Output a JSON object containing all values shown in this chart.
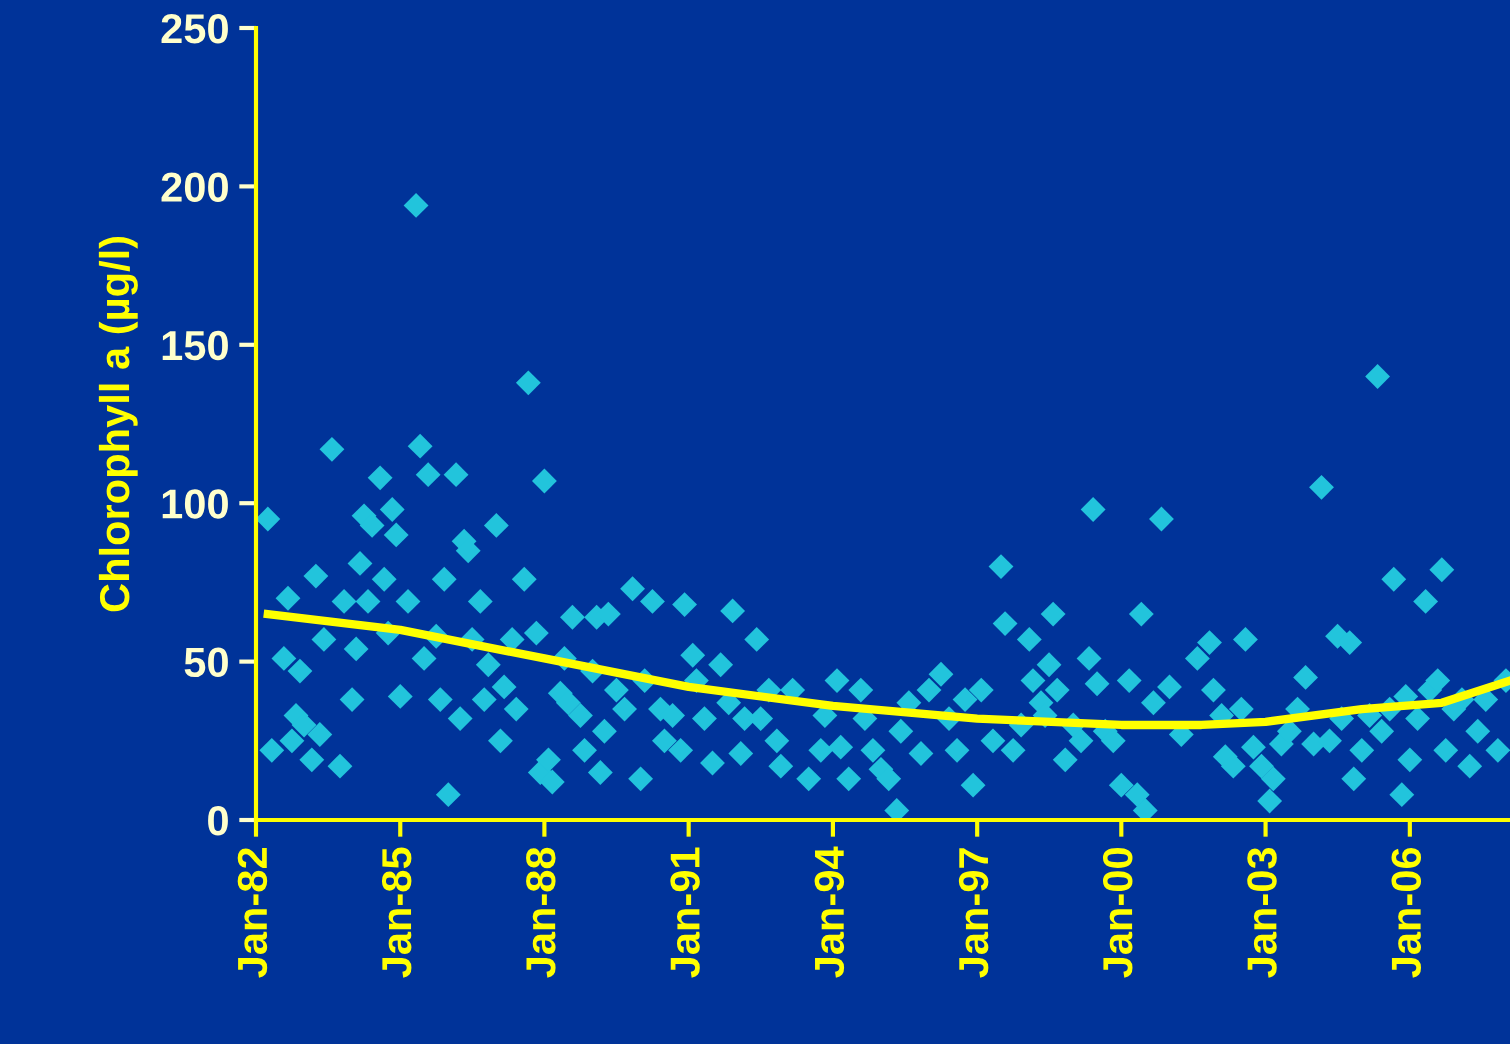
{
  "chart_data": {
    "type": "scatter",
    "ylabel": "Chlorophyll a (µg/l)",
    "xlim": [
      "1982-01",
      "2008-02"
    ],
    "ylim": [
      0,
      250
    ],
    "yticks": [
      0,
      50,
      100,
      150,
      200,
      250
    ],
    "xticks": [
      {
        "value": "1982-01",
        "label": "Jan-82"
      },
      {
        "value": "1985-01",
        "label": "Jan-85"
      },
      {
        "value": "1988-01",
        "label": "Jan-88"
      },
      {
        "value": "1991-01",
        "label": "Jan-91"
      },
      {
        "value": "1994-01",
        "label": "Jan-94"
      },
      {
        "value": "1997-01",
        "label": "Jan-97"
      },
      {
        "value": "2000-01",
        "label": "Jan-00"
      },
      {
        "value": "2003-01",
        "label": "Jan-03"
      },
      {
        "value": "2006-01",
        "label": "Jan-06"
      }
    ],
    "series": [
      {
        "marker": "diamond",
        "color": "#22c4dc",
        "x": [
          "1982-04",
          "1982-05",
          "1982-08",
          "1982-09",
          "1982-10",
          "1982-11",
          "1982-12",
          "1983-01",
          "1983-03",
          "1983-04",
          "1983-05",
          "1983-06",
          "1983-08",
          "1983-10",
          "1983-11",
          "1984-01",
          "1984-02",
          "1984-03",
          "1984-04",
          "1984-05",
          "1984-06",
          "1984-08",
          "1984-09",
          "1984-10",
          "1984-11",
          "1984-12",
          "1985-01",
          "1985-03",
          "1985-05",
          "1985-06",
          "1985-07",
          "1985-08",
          "1985-10",
          "1985-11",
          "1985-12",
          "1986-01",
          "1986-03",
          "1986-04",
          "1986-05",
          "1986-06",
          "1986-07",
          "1986-09",
          "1986-10",
          "1986-11",
          "1987-01",
          "1987-02",
          "1987-03",
          "1987-05",
          "1987-06",
          "1987-08",
          "1987-09",
          "1987-11",
          "1987-12",
          "1988-01",
          "1988-02",
          "1988-03",
          "1988-05",
          "1988-06",
          "1988-07",
          "1988-08",
          "1988-10",
          "1988-11",
          "1989-01",
          "1989-02",
          "1989-03",
          "1989-04",
          "1989-05",
          "1989-07",
          "1989-09",
          "1989-11",
          "1990-01",
          "1990-02",
          "1990-04",
          "1990-06",
          "1990-07",
          "1990-09",
          "1990-11",
          "1990-12",
          "1991-02",
          "1991-03",
          "1991-05",
          "1991-07",
          "1991-09",
          "1991-11",
          "1991-12",
          "1992-02",
          "1992-03",
          "1992-06",
          "1992-07",
          "1992-09",
          "1992-11",
          "1992-12",
          "1993-03",
          "1993-07",
          "1993-10",
          "1993-11",
          "1994-02",
          "1994-03",
          "1994-05",
          "1994-08",
          "1994-09",
          "1994-11",
          "1995-01",
          "1995-03",
          "1995-05",
          "1995-06",
          "1995-08",
          "1995-11",
          "1996-01",
          "1996-04",
          "1996-06",
          "1996-08",
          "1996-10",
          "1996-12",
          "1997-02",
          "1997-05",
          "1997-07",
          "1997-08",
          "1997-10",
          "1997-12",
          "1998-02",
          "1998-03",
          "1998-05",
          "1998-06",
          "1998-07",
          "1998-08",
          "1998-09",
          "1998-11",
          "1999-01",
          "1999-03",
          "1999-05",
          "1999-06",
          "1999-07",
          "1999-09",
          "1999-11",
          "2000-01",
          "2000-03",
          "2000-05",
          "2000-06",
          "2000-07",
          "2000-09",
          "2000-11",
          "2001-01",
          "2001-04",
          "2001-08",
          "2001-11",
          "2001-12",
          "2002-02",
          "2002-03",
          "2002-05",
          "2002-07",
          "2002-08",
          "2002-10",
          "2002-12",
          "2003-02",
          "2003-03",
          "2003-05",
          "2003-07",
          "2003-09",
          "2003-11",
          "2004-01",
          "2004-03",
          "2004-05",
          "2004-07",
          "2004-08",
          "2004-10",
          "2004-11",
          "2005-01",
          "2005-03",
          "2005-05",
          "2005-06",
          "2005-08",
          "2005-09",
          "2005-11",
          "2005-12",
          "2006-01",
          "2006-03",
          "2006-05",
          "2006-06",
          "2006-08",
          "2006-09",
          "2006-10",
          "2006-12",
          "2007-02",
          "2007-04",
          "2007-06",
          "2007-08",
          "2007-11",
          "2008-01"
        ],
        "values": [
          95,
          22,
          51,
          70,
          25,
          33,
          47,
          30,
          19,
          77,
          27,
          57,
          117,
          17,
          69,
          38,
          54,
          81,
          96,
          69,
          93,
          108,
          76,
          59,
          98,
          90,
          39,
          69,
          194,
          118,
          51,
          109,
          58,
          38,
          76,
          8,
          109,
          32,
          88,
          85,
          57,
          69,
          38,
          49,
          93,
          25,
          42,
          57,
          35,
          76,
          138,
          59,
          15,
          107,
          19,
          12,
          40,
          51,
          37,
          64,
          33,
          22,
          47,
          64,
          15,
          28,
          65,
          41,
          35,
          73,
          13,
          44,
          69,
          35,
          25,
          33,
          22,
          68,
          52,
          44,
          32,
          18,
          49,
          37,
          66,
          21,
          32,
          57,
          32,
          41,
          25,
          17,
          41,
          13,
          22,
          33,
          44,
          23,
          13,
          41,
          32,
          22,
          16,
          13,
          3,
          28,
          37,
          21,
          41,
          46,
          32,
          22,
          38,
          11,
          41,
          25,
          80,
          62,
          22,
          30,
          57,
          44,
          37,
          33,
          49,
          65,
          41,
          19,
          30,
          25,
          51,
          98,
          43,
          28,
          25,
          11,
          44,
          8,
          65,
          3,
          37,
          95,
          42,
          27,
          51,
          56,
          41,
          33,
          20,
          17,
          35,
          57,
          23,
          17,
          6,
          13,
          24,
          28,
          35,
          45,
          24,
          105,
          25,
          58,
          32,
          56,
          13,
          22,
          33,
          140,
          28,
          35,
          76,
          8,
          39,
          19,
          32,
          69,
          41,
          44,
          79,
          22,
          35,
          38,
          17,
          28,
          38,
          22,
          44
        ]
      },
      {
        "type": "line",
        "color": "#ffff00",
        "line_style": "solid",
        "marker": "none",
        "x": [
          "1982-04",
          "1985-01",
          "1988-01",
          "1991-01",
          "1994-01",
          "1997-01",
          "2000-01",
          "2001-09",
          "2003-01",
          "2005-01",
          "2006-09",
          "2008-02"
        ],
        "values": [
          65,
          60,
          51,
          42,
          36,
          32,
          30,
          30,
          31,
          35,
          37,
          44
        ]
      }
    ]
  }
}
